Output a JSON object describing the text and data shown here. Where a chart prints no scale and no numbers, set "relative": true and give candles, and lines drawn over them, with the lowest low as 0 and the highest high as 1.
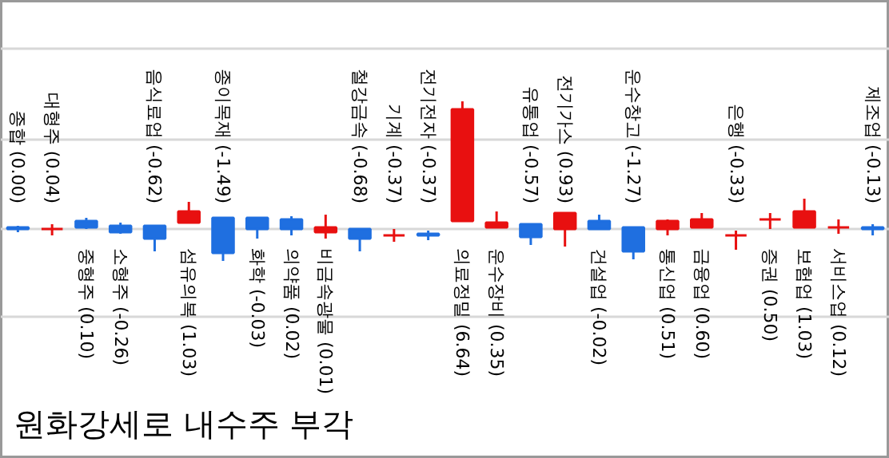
{
  "chart_data": {
    "type": "candlestick",
    "relative": true,
    "title": "원화강세로 내수주 부각",
    "ref_lines": [
      {
        "axis": "y",
        "value": 1.33,
        "color": "#d8d8d8"
      },
      {
        "axis": "y",
        "value": 0.76,
        "color": "#d8d8d8"
      },
      {
        "axis": "y",
        "value": 0.2,
        "color": "#d8d8d8"
      },
      {
        "axis": "y",
        "value": -0.35,
        "color": "#d8d8d8"
      }
    ],
    "categories": [
      "종합 (0.00)",
      "대형주 (0.04)",
      "중형주 (0.10)",
      "소형주 (-0.26)",
      "음식료업 (-0.62)",
      "섬유의복 (1.03)",
      "종이목재 (-1.49)",
      "화학 (-0.03)",
      "의약품 (0.02)",
      "비금속광물 (0.01)",
      "철강금속 (-0.68)",
      "기계 (-0.37)",
      "전기전자 (-0.37)",
      "의료정밀 (6.64)",
      "운수장비 (0.35)",
      "유통업 (-0.57)",
      "전기가스 (0.93)",
      "건설업 (-0.02)",
      "운수창고 (-1.27)",
      "통신업 (0.51)",
      "금융업 (0.60)",
      "은행 (-0.33)",
      "증권 (0.50)",
      "보험업 (1.03)",
      "서비스업 (0.12)",
      "제조업 (-0.13)"
    ],
    "ohlc": [
      [
        0.21,
        0.22,
        0.18,
        0.2
      ],
      [
        0.2,
        0.23,
        0.16,
        0.2
      ],
      [
        0.25,
        0.27,
        0.2,
        0.21
      ],
      [
        0.22,
        0.24,
        0.17,
        0.18
      ],
      [
        0.22,
        0.22,
        0.06,
        0.14
      ],
      [
        0.24,
        0.37,
        0.24,
        0.31
      ],
      [
        0.27,
        0.27,
        0.0,
        0.05
      ],
      [
        0.27,
        0.27,
        0.14,
        0.2
      ],
      [
        0.26,
        0.28,
        0.16,
        0.2
      ],
      [
        0.18,
        0.29,
        0.14,
        0.21
      ],
      [
        0.2,
        0.2,
        0.06,
        0.14
      ],
      [
        0.16,
        0.2,
        0.12,
        0.16
      ],
      [
        0.17,
        0.19,
        0.13,
        0.16
      ],
      [
        0.25,
        1.0,
        0.25,
        0.95
      ],
      [
        0.21,
        0.31,
        0.21,
        0.24
      ],
      [
        0.23,
        0.23,
        0.1,
        0.15
      ],
      [
        0.2,
        0.3,
        0.09,
        0.3
      ],
      [
        0.25,
        0.29,
        0.2,
        0.2
      ],
      [
        0.21,
        0.21,
        0.01,
        0.06
      ],
      [
        0.2,
        0.26,
        0.16,
        0.25
      ],
      [
        0.21,
        0.3,
        0.21,
        0.26
      ],
      [
        0.16,
        0.19,
        0.07,
        0.16
      ],
      [
        0.26,
        0.3,
        0.2,
        0.26
      ],
      [
        0.21,
        0.39,
        0.21,
        0.31
      ],
      [
        0.21,
        0.26,
        0.17,
        0.21
      ],
      [
        0.21,
        0.23,
        0.16,
        0.2
      ]
    ],
    "colors": [
      "#1f6fe0",
      "#e81010",
      "#1f6fe0",
      "#1f6fe0",
      "#1f6fe0",
      "#e81010",
      "#1f6fe0",
      "#1f6fe0",
      "#1f6fe0",
      "#e81010",
      "#1f6fe0",
      "#e81010",
      "#1f6fe0",
      "#e81010",
      "#e81010",
      "#1f6fe0",
      "#e81010",
      "#1f6fe0",
      "#1f6fe0",
      "#e81010",
      "#e81010",
      "#e81010",
      "#e81010",
      "#e81010",
      "#e81010",
      "#1f6fe0"
    ]
  }
}
